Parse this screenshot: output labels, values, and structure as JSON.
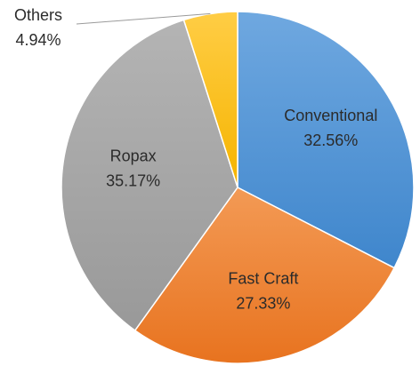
{
  "chart_data": {
    "type": "pie",
    "title": "",
    "legend": "none",
    "slices": [
      {
        "label": "Conventional",
        "value": 32.56,
        "display_value": "32.56%",
        "color": "#5b9bd5"
      },
      {
        "label": "Fast Craft",
        "value": 27.33,
        "display_value": "27.33%",
        "color": "#ed7d31"
      },
      {
        "label": "Ropax",
        "value": 35.17,
        "display_value": "35.17%",
        "color": "#a5a5a5"
      },
      {
        "label": "Others",
        "value": 4.94,
        "display_value": "4.94%",
        "color": "#ffc000"
      }
    ]
  }
}
